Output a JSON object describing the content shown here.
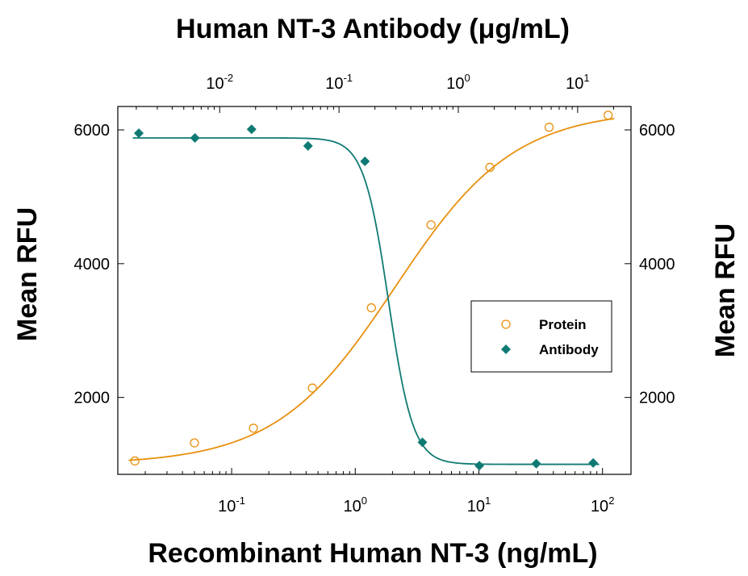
{
  "chart_data": {
    "type": "scatter",
    "title": "Human NT-3 Antibody (μg/mL)",
    "xlabel": "Recombinant Human NT-3 (ng/mL)",
    "ylabel": "Mean RFU",
    "ylabel_right": "Mean RFU",
    "x_scale": "log",
    "xlim": [
      0.012,
      170
    ],
    "ylim": [
      850,
      6350
    ],
    "top_axis": {
      "label": "Human NT-3 Antibody (μg/mL)",
      "scale": "log",
      "lim": [
        0.0014,
        28
      ],
      "ticks": [
        {
          "base": "10",
          "exp": "-2",
          "value": 0.01
        },
        {
          "base": "10",
          "exp": "-1",
          "value": 0.1
        },
        {
          "base": "10",
          "exp": "0",
          "value": 1
        },
        {
          "base": "10",
          "exp": "1",
          "value": 10
        }
      ]
    },
    "bottom_ticks": [
      {
        "base": "10",
        "exp": "-1",
        "value": 0.1
      },
      {
        "base": "10",
        "exp": "0",
        "value": 1
      },
      {
        "base": "10",
        "exp": "1",
        "value": 10
      },
      {
        "base": "10",
        "exp": "2",
        "value": 100
      }
    ],
    "y_ticks": [
      {
        "label": "2000",
        "value": 2000
      },
      {
        "label": "4000",
        "value": 4000
      },
      {
        "label": "6000",
        "value": 6000
      }
    ],
    "grid": false,
    "legend_position": "right-middle",
    "colors": {
      "protein": "#E8900F",
      "antibody": "#0F7A73"
    },
    "series": [
      {
        "name": "Protein",
        "marker": "open-circle",
        "axis": "bottom",
        "x": [
          0.0165,
          0.05,
          0.15,
          0.45,
          1.35,
          4.1,
          12.3,
          37,
          111
        ],
        "y": [
          1050,
          1320,
          1540,
          2140,
          3340,
          4580,
          5440,
          6040,
          6220
        ],
        "fit": {
          "bottom": 1000,
          "top": 6300,
          "ec50": 2.1,
          "hill": 0.9
        }
      },
      {
        "name": "Antibody",
        "marker": "filled-diamond",
        "axis": "top",
        "x": [
          0.0021,
          0.0062,
          0.0185,
          0.055,
          0.165,
          0.5,
          1.5,
          4.5,
          13.5
        ],
        "y": [
          5950,
          5880,
          6010,
          5760,
          5530,
          1330,
          980,
          1010,
          1020
        ],
        "fit": {
          "bottom": 1000,
          "top": 5880,
          "ec50": 0.26,
          "hill": 4.2
        }
      }
    ]
  }
}
